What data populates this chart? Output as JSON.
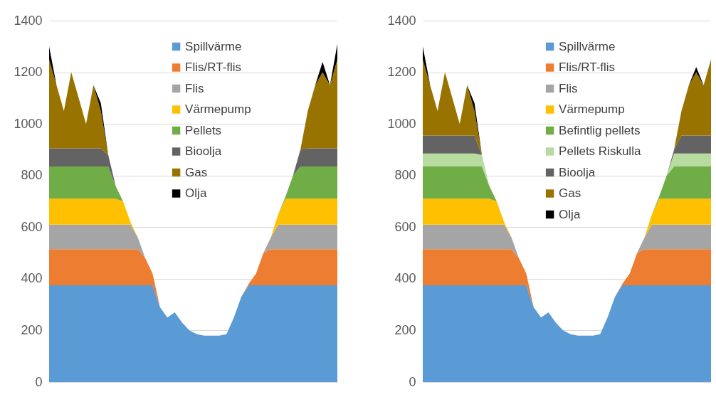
{
  "chart_data": [
    {
      "type": "area",
      "stacked": true,
      "categories": [
        null,
        null,
        null,
        null,
        null,
        null,
        null,
        null,
        null,
        null,
        null,
        null,
        null,
        null,
        null,
        null,
        null,
        null,
        null,
        null,
        null,
        null,
        null,
        null,
        null,
        null,
        null,
        null,
        null,
        null,
        null,
        null,
        null,
        null,
        null,
        null,
        null,
        null,
        null,
        null
      ],
      "series": [
        {
          "name": "Spillvärme",
          "color": "#5b9bd5",
          "values": [
            375,
            375,
            375,
            375,
            375,
            375,
            375,
            375,
            375,
            375,
            375,
            375,
            375,
            375,
            375,
            290,
            250,
            270,
            230,
            200,
            185,
            180,
            180,
            180,
            185,
            250,
            330,
            375,
            375,
            375,
            375,
            375,
            375,
            375,
            375,
            375,
            375,
            375,
            375,
            375
          ]
        },
        {
          "name": "Flis/RT-flis",
          "color": "#ed7d31",
          "values": [
            140,
            140,
            140,
            140,
            140,
            140,
            140,
            140,
            140,
            140,
            140,
            140,
            140,
            105,
            45,
            0,
            0,
            0,
            0,
            0,
            0,
            0,
            0,
            0,
            0,
            0,
            0,
            5,
            45,
            125,
            140,
            140,
            140,
            140,
            140,
            140,
            140,
            140,
            140,
            140
          ]
        },
        {
          "name": "Flis",
          "color": "#a5a5a5",
          "values": [
            95,
            95,
            95,
            95,
            95,
            95,
            95,
            95,
            95,
            95,
            95,
            95,
            45,
            0,
            0,
            0,
            0,
            0,
            0,
            0,
            0,
            0,
            0,
            0,
            0,
            0,
            0,
            0,
            0,
            0,
            45,
            95,
            95,
            95,
            95,
            95,
            95,
            95,
            95,
            95
          ]
        },
        {
          "name": "Värmepump",
          "color": "#ffc000",
          "values": [
            100,
            100,
            100,
            100,
            100,
            100,
            100,
            100,
            100,
            100,
            90,
            10,
            0,
            0,
            0,
            0,
            0,
            0,
            0,
            0,
            0,
            0,
            0,
            0,
            0,
            0,
            0,
            0,
            0,
            0,
            0,
            40,
            100,
            100,
            100,
            100,
            100,
            100,
            100,
            100
          ]
        },
        {
          "name": "Pellets",
          "color": "#70ad47",
          "values": [
            125,
            125,
            125,
            125,
            125,
            125,
            125,
            125,
            125,
            50,
            0,
            0,
            0,
            0,
            0,
            0,
            0,
            0,
            0,
            0,
            0,
            0,
            0,
            0,
            0,
            0,
            0,
            0,
            0,
            0,
            0,
            0,
            10,
            90,
            125,
            125,
            125,
            125,
            125,
            125
          ]
        },
        {
          "name": "Bioolja",
          "color": "#636363",
          "values": [
            70,
            70,
            70,
            70,
            70,
            70,
            70,
            70,
            45,
            0,
            0,
            0,
            0,
            0,
            0,
            0,
            0,
            0,
            0,
            0,
            0,
            0,
            0,
            0,
            0,
            0,
            0,
            0,
            0,
            0,
            0,
            0,
            0,
            0,
            65,
            70,
            70,
            70,
            70,
            70
          ]
        },
        {
          "name": "Gas",
          "color": "#997300",
          "values": [
            345,
            245,
            145,
            295,
            195,
            95,
            245,
            145,
            0,
            0,
            0,
            0,
            0,
            0,
            0,
            0,
            0,
            0,
            0,
            0,
            0,
            0,
            0,
            0,
            0,
            0,
            0,
            0,
            0,
            0,
            0,
            0,
            0,
            0,
            0,
            145,
            245,
            295,
            245,
            345
          ]
        },
        {
          "name": "Olja",
          "color": "#000000",
          "values": [
            50,
            0,
            0,
            0,
            0,
            0,
            0,
            30,
            0,
            0,
            0,
            0,
            0,
            0,
            0,
            0,
            0,
            0,
            0,
            0,
            0,
            0,
            0,
            0,
            0,
            0,
            0,
            0,
            0,
            0,
            0,
            0,
            0,
            0,
            0,
            0,
            0,
            40,
            0,
            60
          ]
        }
      ],
      "ylim": [
        0,
        1400
      ],
      "yticks": [
        0,
        200,
        400,
        600,
        800,
        1000,
        1200,
        1400
      ],
      "grid": "y",
      "legend": "top",
      "tick_labels": "y"
    },
    {
      "type": "area",
      "stacked": true,
      "categories": [
        null,
        null,
        null,
        null,
        null,
        null,
        null,
        null,
        null,
        null,
        null,
        null,
        null,
        null,
        null,
        null,
        null,
        null,
        null,
        null,
        null,
        null,
        null,
        null,
        null,
        null,
        null,
        null,
        null,
        null,
        null,
        null,
        null,
        null,
        null,
        null,
        null,
        null,
        null,
        null
      ],
      "series": [
        {
          "name": "Spillvärme",
          "color": "#5b9bd5",
          "values": [
            375,
            375,
            375,
            375,
            375,
            375,
            375,
            375,
            375,
            375,
            375,
            375,
            375,
            375,
            375,
            290,
            250,
            270,
            230,
            200,
            185,
            180,
            180,
            180,
            185,
            250,
            330,
            375,
            375,
            375,
            375,
            375,
            375,
            375,
            375,
            375,
            375,
            375,
            375,
            375
          ]
        },
        {
          "name": "Flis/RT-flis",
          "color": "#ed7d31",
          "values": [
            140,
            140,
            140,
            140,
            140,
            140,
            140,
            140,
            140,
            140,
            140,
            140,
            140,
            105,
            45,
            0,
            0,
            0,
            0,
            0,
            0,
            0,
            0,
            0,
            0,
            0,
            0,
            5,
            45,
            125,
            140,
            140,
            140,
            140,
            140,
            140,
            140,
            140,
            140,
            140
          ]
        },
        {
          "name": "Flis",
          "color": "#a5a5a5",
          "values": [
            95,
            95,
            95,
            95,
            95,
            95,
            95,
            95,
            95,
            95,
            95,
            95,
            45,
            0,
            0,
            0,
            0,
            0,
            0,
            0,
            0,
            0,
            0,
            0,
            0,
            0,
            0,
            0,
            0,
            0,
            45,
            95,
            95,
            95,
            95,
            95,
            95,
            95,
            95,
            95
          ]
        },
        {
          "name": "Värmepump",
          "color": "#ffc000",
          "values": [
            100,
            100,
            100,
            100,
            100,
            100,
            100,
            100,
            100,
            100,
            90,
            10,
            0,
            0,
            0,
            0,
            0,
            0,
            0,
            0,
            0,
            0,
            0,
            0,
            0,
            0,
            0,
            0,
            0,
            0,
            0,
            40,
            100,
            100,
            100,
            100,
            100,
            100,
            100,
            100
          ]
        },
        {
          "name": "Befintlig pellets",
          "color": "#70ad47",
          "values": [
            125,
            125,
            125,
            125,
            125,
            125,
            125,
            125,
            125,
            50,
            0,
            0,
            0,
            0,
            0,
            0,
            0,
            0,
            0,
            0,
            0,
            0,
            0,
            0,
            0,
            0,
            0,
            0,
            0,
            0,
            0,
            0,
            10,
            90,
            125,
            125,
            125,
            125,
            125,
            125
          ]
        },
        {
          "name": "Pellets Riskulla",
          "color": "#b7dca0",
          "values": [
            50,
            50,
            50,
            50,
            50,
            50,
            50,
            50,
            45,
            0,
            0,
            0,
            0,
            0,
            0,
            0,
            0,
            0,
            0,
            0,
            0,
            0,
            0,
            0,
            0,
            0,
            0,
            0,
            0,
            0,
            0,
            0,
            0,
            0,
            50,
            50,
            50,
            50,
            50,
            50
          ]
        },
        {
          "name": "Bioolja",
          "color": "#636363",
          "values": [
            70,
            70,
            70,
            70,
            70,
            70,
            70,
            70,
            0,
            0,
            0,
            0,
            0,
            0,
            0,
            0,
            0,
            0,
            0,
            0,
            0,
            0,
            0,
            0,
            0,
            0,
            0,
            0,
            0,
            0,
            0,
            0,
            0,
            0,
            15,
            70,
            70,
            70,
            70,
            70
          ]
        },
        {
          "name": "Gas",
          "color": "#997300",
          "values": [
            295,
            195,
            95,
            245,
            145,
            45,
            195,
            95,
            0,
            0,
            0,
            0,
            0,
            0,
            0,
            0,
            0,
            0,
            0,
            0,
            0,
            0,
            0,
            0,
            0,
            0,
            0,
            0,
            0,
            0,
            0,
            0,
            0,
            0,
            0,
            95,
            195,
            245,
            195,
            295
          ]
        },
        {
          "name": "Olja",
          "color": "#000000",
          "values": [
            50,
            0,
            0,
            0,
            0,
            0,
            0,
            30,
            0,
            0,
            0,
            0,
            0,
            0,
            0,
            0,
            0,
            0,
            0,
            0,
            0,
            0,
            0,
            0,
            0,
            0,
            0,
            0,
            0,
            0,
            0,
            0,
            0,
            0,
            0,
            0,
            0,
            20,
            0,
            0
          ]
        }
      ],
      "ylim": [
        0,
        1400
      ],
      "yticks": [
        0,
        200,
        400,
        600,
        800,
        1000,
        1200,
        1400
      ],
      "grid": "y",
      "legend": "top",
      "tick_labels": "y"
    }
  ]
}
